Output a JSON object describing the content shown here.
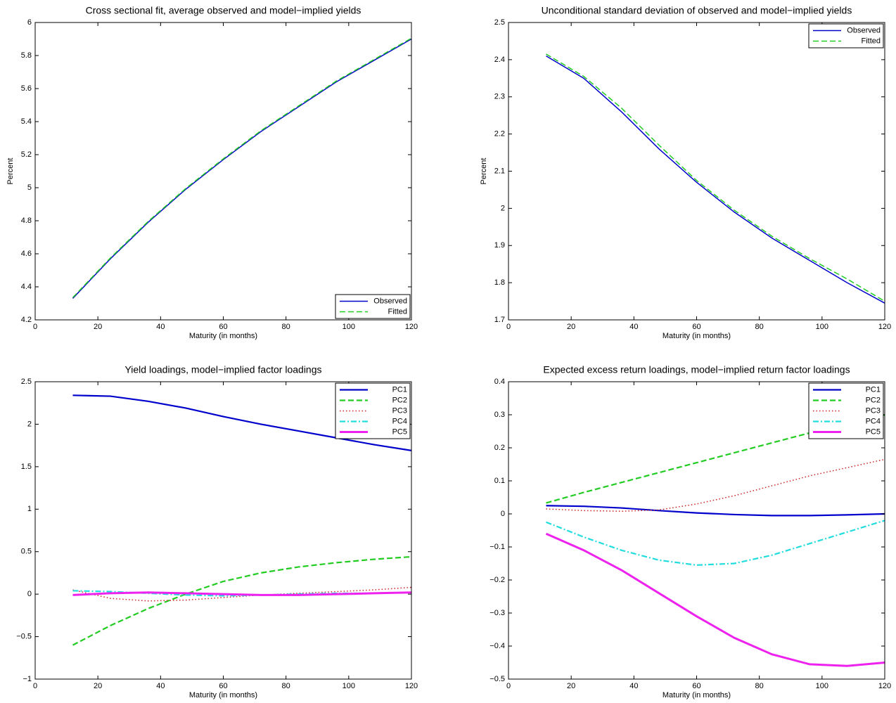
{
  "chart_data": [
    {
      "type": "line",
      "title": "Cross sectional fit, average observed and model−implied yields",
      "xlabel": "Maturity (in months)",
      "ylabel": "Percent",
      "x": [
        12,
        24,
        36,
        48,
        60,
        72,
        84,
        96,
        108,
        120
      ],
      "series": [
        {
          "name": "Observed",
          "color": "#0000cc",
          "dash": "solid",
          "width": 1.5,
          "values": [
            4.33,
            4.57,
            4.79,
            4.99,
            5.17,
            5.34,
            5.49,
            5.64,
            5.77,
            5.9
          ]
        },
        {
          "name": "Fitted",
          "color": "#22cc22",
          "dash": "dashed",
          "width": 1.5,
          "values": [
            4.335,
            4.575,
            4.795,
            4.995,
            5.175,
            5.345,
            5.495,
            5.645,
            5.775,
            5.905
          ]
        }
      ],
      "xlim": [
        0,
        120
      ],
      "ylim": [
        4.2,
        6
      ],
      "xticks": [
        0,
        20,
        40,
        60,
        80,
        100,
        120
      ],
      "yticks": [
        4.2,
        4.4,
        4.6,
        4.8,
        5,
        5.2,
        5.4,
        5.6,
        5.8,
        6
      ],
      "legend": "lower right"
    },
    {
      "type": "line",
      "title": "Unconditional standard deviation of observed and model−implied yields",
      "xlabel": "Maturity (in months)",
      "ylabel": "Percent",
      "x": [
        12,
        24,
        36,
        48,
        60,
        72,
        84,
        96,
        108,
        120
      ],
      "series": [
        {
          "name": "Observed",
          "color": "#0000cc",
          "dash": "solid",
          "width": 1.5,
          "values": [
            2.41,
            2.35,
            2.26,
            2.16,
            2.07,
            1.99,
            1.92,
            1.86,
            1.8,
            1.745
          ]
        },
        {
          "name": "Fitted",
          "color": "#22cc22",
          "dash": "dashed",
          "width": 1.5,
          "values": [
            2.415,
            2.355,
            2.27,
            2.17,
            2.075,
            1.995,
            1.925,
            1.865,
            1.81,
            1.75
          ]
        }
      ],
      "xlim": [
        0,
        120
      ],
      "ylim": [
        1.7,
        2.5
      ],
      "xticks": [
        0,
        20,
        40,
        60,
        80,
        100,
        120
      ],
      "yticks": [
        1.7,
        1.8,
        1.9,
        2,
        2.1,
        2.2,
        2.3,
        2.4,
        2.5
      ],
      "legend": "upper right"
    },
    {
      "type": "line",
      "title": "Yield loadings, model−implied factor loadings",
      "xlabel": "Maturity (in months)",
      "x": [
        12,
        24,
        36,
        48,
        60,
        72,
        84,
        96,
        108,
        120
      ],
      "series": [
        {
          "name": "PC1",
          "color": "#0000cc",
          "dash": "solid",
          "width": 2.2,
          "values": [
            2.34,
            2.33,
            2.27,
            2.19,
            2.09,
            2.0,
            1.92,
            1.84,
            1.76,
            1.69
          ]
        },
        {
          "name": "PC2",
          "color": "#22cc22",
          "dash": "dashed",
          "width": 2.2,
          "values": [
            -0.6,
            -0.37,
            -0.17,
            0.0,
            0.15,
            0.25,
            0.32,
            0.37,
            0.41,
            0.44
          ]
        },
        {
          "name": "PC3",
          "color": "#cc2222",
          "dash": "dotted",
          "width": 1.5,
          "values": [
            0.05,
            -0.05,
            -0.08,
            -0.07,
            -0.04,
            -0.01,
            0.01,
            0.03,
            0.05,
            0.08
          ]
        },
        {
          "name": "PC4",
          "color": "#22dddd",
          "dash": "dashdot",
          "width": 2.2,
          "values": [
            0.04,
            0.03,
            0.01,
            -0.01,
            -0.02,
            -0.01,
            0.0,
            0.01,
            0.01,
            0.02
          ]
        },
        {
          "name": "PC5",
          "color": "#ee22ee",
          "dash": "solid",
          "width": 3,
          "values": [
            -0.01,
            0.01,
            0.02,
            0.01,
            0.0,
            -0.01,
            -0.01,
            0.0,
            0.01,
            0.02
          ]
        }
      ],
      "xlim": [
        0,
        120
      ],
      "ylim": [
        -1,
        2.5
      ],
      "xticks": [
        0,
        20,
        40,
        60,
        80,
        100,
        120
      ],
      "yticks": [
        {
          "value": -1,
          "label": "−1"
        },
        {
          "value": -0.5,
          "label": "−0.5"
        },
        0,
        0.5,
        1,
        1.5,
        2,
        2.5
      ],
      "legend": "upper right"
    },
    {
      "type": "line",
      "title": "Expected excess return loadings, model−implied return factor loadings",
      "xlabel": "Maturity (in months)",
      "x": [
        12,
        24,
        36,
        48,
        60,
        72,
        84,
        96,
        108,
        120
      ],
      "series": [
        {
          "name": "PC1",
          "color": "#0000cc",
          "dash": "solid",
          "width": 2.2,
          "values": [
            0.025,
            0.023,
            0.018,
            0.01,
            0.003,
            -0.002,
            -0.005,
            -0.005,
            -0.003,
            0.0
          ]
        },
        {
          "name": "PC2",
          "color": "#22cc22",
          "dash": "dashed",
          "width": 2.2,
          "values": [
            0.033,
            0.065,
            0.095,
            0.125,
            0.155,
            0.185,
            0.215,
            0.245,
            0.27,
            0.3
          ]
        },
        {
          "name": "PC3",
          "color": "#cc2222",
          "dash": "dotted",
          "width": 1.5,
          "values": [
            0.015,
            0.01,
            0.008,
            0.012,
            0.03,
            0.055,
            0.085,
            0.115,
            0.14,
            0.165
          ]
        },
        {
          "name": "PC4",
          "color": "#22dddd",
          "dash": "dashdot",
          "width": 2.2,
          "values": [
            -0.025,
            -0.07,
            -0.11,
            -0.14,
            -0.155,
            -0.15,
            -0.125,
            -0.09,
            -0.055,
            -0.02
          ]
        },
        {
          "name": "PC5",
          "color": "#ee22ee",
          "dash": "solid",
          "width": 3,
          "values": [
            -0.06,
            -0.11,
            -0.17,
            -0.24,
            -0.31,
            -0.375,
            -0.425,
            -0.455,
            -0.46,
            -0.45
          ]
        }
      ],
      "xlim": [
        0,
        120
      ],
      "ylim": [
        -0.5,
        0.4
      ],
      "xticks": [
        0,
        20,
        40,
        60,
        80,
        100,
        120
      ],
      "yticks": [
        {
          "value": -0.5,
          "label": "−0.5"
        },
        {
          "value": -0.4,
          "label": "−0.4"
        },
        {
          "value": -0.3,
          "label": "−0.3"
        },
        {
          "value": -0.2,
          "label": "−0.2"
        },
        {
          "value": -0.1,
          "label": "−0.1"
        },
        0,
        0.1,
        0.2,
        0.3,
        0.4
      ],
      "legend": "upper right"
    }
  ]
}
